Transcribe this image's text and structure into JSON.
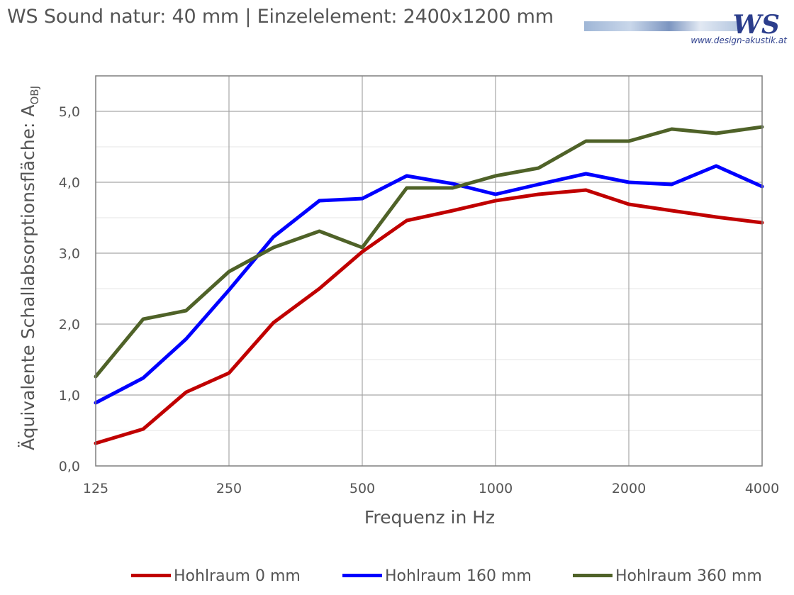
{
  "header": {
    "title": "WS Sound natur: 40 mm | Einzelelement: 2400x1200 mm",
    "logo_mark": "WS",
    "logo_url": "www.design-akustik.at"
  },
  "chart_data": {
    "type": "line",
    "xlabel": "Frequenz in Hz",
    "ylabel": "Äquivalente Schallabsorptionsfläche: A",
    "ylabel_sub": "OBJ",
    "x": [
      125,
      160,
      200,
      250,
      315,
      400,
      500,
      630,
      800,
      1000,
      1250,
      1600,
      2000,
      2500,
      3150,
      4000
    ],
    "x_ticks": [
      "125",
      "250",
      "500",
      "1000",
      "2000",
      "4000"
    ],
    "x_scale": "log",
    "y_ticks": [
      "0,0",
      "1,0",
      "2,0",
      "3,0",
      "4,0",
      "5,0"
    ],
    "ylim": [
      0,
      5.5
    ],
    "grid": true,
    "legend_position": "bottom",
    "series": [
      {
        "name": "Hohlraum 0 mm",
        "color": "#c00000",
        "values": [
          0.32,
          0.52,
          1.04,
          1.31,
          2.02,
          2.5,
          3.02,
          3.46,
          3.6,
          3.74,
          3.83,
          3.89,
          3.69,
          3.6,
          3.51,
          3.43
        ]
      },
      {
        "name": "Hohlraum 160 mm",
        "color": "#0000ff",
        "values": [
          0.89,
          1.24,
          1.79,
          2.48,
          3.23,
          3.74,
          3.77,
          4.09,
          3.98,
          3.83,
          3.97,
          4.12,
          4.0,
          3.97,
          4.23,
          3.94
        ]
      },
      {
        "name": "Hohlraum 360 mm",
        "color": "#4f6228",
        "values": [
          1.26,
          2.07,
          2.19,
          2.74,
          3.08,
          3.31,
          3.08,
          3.92,
          3.92,
          4.09,
          4.2,
          4.58,
          4.58,
          4.75,
          4.69,
          4.78
        ]
      }
    ]
  }
}
